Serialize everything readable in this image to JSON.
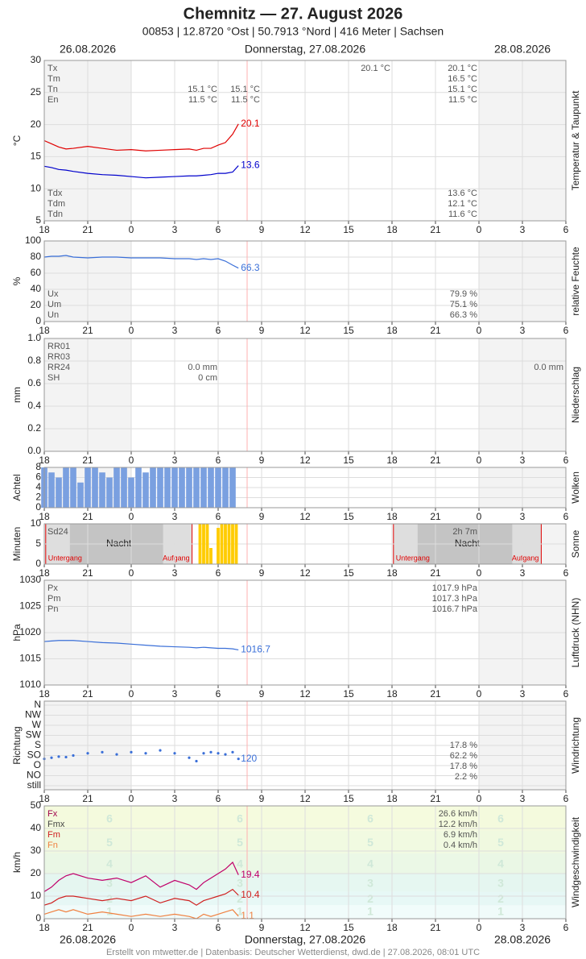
{
  "header": {
    "title": "Chemnitz  —  27. August 2026",
    "subtitle": "00853  |  12.8720 °Ost  |  50.7913 °Nord  |  416 Meter  |  Sachsen"
  },
  "dates": [
    "26.08.2026",
    "Donnerstag, 27.08.2026",
    "28.08.2026"
  ],
  "footer": "Erstellt von mtwetter.de | Datenbasis: Deutscher Wetterdienst, dwd.de | 27.08.2026, 08:01 UTC",
  "x_axis": {
    "xlim": [
      18,
      54
    ],
    "now": 32,
    "xticks": [
      18,
      21,
      {
        "value": 24,
        "label": "0"
      },
      {
        "value": 27,
        "label": "3"
      },
      {
        "value": 30,
        "label": "6"
      },
      {
        "value": 33,
        "label": "9"
      },
      {
        "value": 36,
        "label": "12"
      },
      {
        "value": 39,
        "label": "15"
      },
      {
        "value": 42,
        "label": "18"
      },
      {
        "value": 45,
        "label": "21"
      },
      {
        "value": 48,
        "label": "0"
      },
      {
        "value": 51,
        "label": "3"
      },
      {
        "value": 54,
        "label": "6"
      }
    ]
  },
  "chart_data": [
    {
      "type": "line",
      "title": "Temperatur & Taupunkt",
      "y_label": "°C",
      "ylim": [
        5,
        30
      ],
      "yticks": [
        5,
        10,
        15,
        20,
        25,
        30
      ],
      "x": [
        18,
        18.5,
        19,
        19.5,
        20,
        21,
        22,
        23,
        24,
        25,
        26,
        27,
        28,
        28.5,
        29,
        29.5,
        30,
        30.5,
        31,
        31.4
      ],
      "series": [
        {
          "color": "#e00000",
          "values": [
            17.5,
            17.0,
            16.5,
            16.2,
            16.3,
            16.6,
            16.3,
            16.0,
            16.1,
            15.9,
            16.0,
            16.1,
            16.2,
            16.0,
            16.3,
            16.3,
            16.8,
            17.2,
            18.5,
            20.1
          ]
        },
        {
          "color": "#0000cc",
          "values": [
            13.5,
            13.3,
            13.0,
            12.9,
            12.7,
            12.4,
            12.2,
            12.1,
            11.9,
            11.7,
            11.8,
            11.9,
            12.0,
            12.0,
            12.1,
            12.2,
            12.4,
            12.4,
            12.6,
            13.6
          ]
        }
      ],
      "stats": {
        "top": [
          {
            "name": "Tx",
            "values": [
              null,
              null,
              "20.1 °C",
              "20.1 °C",
              null
            ]
          },
          {
            "name": "Tm",
            "values": [
              null,
              null,
              null,
              "16.5 °C",
              null
            ]
          },
          {
            "name": "Tn",
            "values": [
              "15.1 °C",
              "15.1 °C",
              null,
              "15.1 °C",
              null
            ]
          },
          {
            "name": "En",
            "values": [
              "11.5 °C",
              "11.5 °C",
              null,
              "11.5 °C",
              null
            ]
          }
        ],
        "bottom": [
          {
            "name": "Tdx",
            "values": [
              null,
              null,
              null,
              "13.6 °C",
              null
            ]
          },
          {
            "name": "Tdm",
            "values": [
              null,
              null,
              null,
              "12.1 °C",
              null
            ]
          },
          {
            "name": "Tdn",
            "values": [
              null,
              null,
              null,
              "11.6 °C",
              null
            ]
          }
        ]
      }
    },
    {
      "type": "line",
      "title": "relative Feuchte",
      "y_label": "%",
      "ylim": [
        0,
        100
      ],
      "yticks": [
        0,
        20,
        40,
        60,
        80,
        100
      ],
      "x": [
        18,
        18.5,
        19,
        19.5,
        20,
        21,
        22,
        23,
        24,
        25,
        26,
        27,
        28,
        28.5,
        29,
        29.5,
        30,
        30.5,
        31,
        31.4
      ],
      "series": [
        {
          "color": "#3a6fd8",
          "values": [
            80,
            81,
            81,
            82,
            80,
            79,
            80,
            80,
            79,
            79,
            79,
            78,
            78,
            77,
            78,
            77,
            78,
            75,
            70,
            66.3
          ]
        }
      ],
      "stats": {
        "bottom": [
          {
            "name": "Ux",
            "values": [
              null,
              null,
              null,
              "79.9 %",
              null
            ]
          },
          {
            "name": "Um",
            "values": [
              null,
              null,
              null,
              "75.1 %",
              null
            ]
          },
          {
            "name": "Un",
            "values": [
              null,
              null,
              null,
              "66.3 %",
              null
            ]
          }
        ]
      }
    },
    {
      "type": "line",
      "title": "Niederschlag",
      "y_label": "mm",
      "ylim": [
        0,
        1
      ],
      "yticks": [
        {
          "value": 0,
          "label": "0.0"
        },
        0.2,
        0.4,
        0.6,
        0.8,
        {
          "value": 1,
          "label": "1.0"
        }
      ],
      "x": [],
      "series": [],
      "stats": {
        "top": [
          {
            "name": "RR01",
            "values": [
              null,
              null,
              null,
              null,
              null
            ]
          },
          {
            "name": "RR03",
            "values": [
              null,
              null,
              null,
              null,
              null
            ]
          },
          {
            "name": "RR24",
            "values": [
              "0.0 mm",
              null,
              null,
              null,
              "0.0 mm"
            ]
          },
          {
            "name": "SH",
            "values": [
              "0 cm",
              null,
              null,
              null,
              null
            ]
          }
        ]
      }
    },
    {
      "type": "bar",
      "title": "Wolken",
      "y_label": "Achtel",
      "ylim": [
        0,
        8
      ],
      "yticks": [
        0,
        2,
        4,
        6,
        8
      ],
      "x": [
        18,
        18.5,
        19,
        19.5,
        20,
        20.5,
        21,
        21.5,
        22,
        22.5,
        23,
        23.5,
        24,
        24.5,
        25,
        25.5,
        26,
        26.5,
        27,
        27.5,
        28,
        28.5,
        29,
        29.5,
        30,
        30.5,
        31
      ],
      "series": [
        {
          "color": "#7aa0e0",
          "values": [
            8,
            7,
            6,
            8,
            8,
            5,
            8,
            8,
            7,
            6,
            8,
            8,
            6,
            8,
            7,
            8,
            8,
            8,
            8,
            8,
            8,
            8,
            8,
            8,
            8,
            8,
            8
          ]
        }
      ]
    },
    {
      "type": "bar",
      "title": "Sonne",
      "y_label": "Minuten",
      "ylim": [
        0,
        10
      ],
      "yticks": [
        0,
        5,
        10
      ],
      "nights": [
        [
          18.1,
          28.2
        ],
        [
          42.1,
          52.3
        ]
      ],
      "night_label": "Nacht",
      "sunset_label": "Untergang",
      "sunrise_label": "Aufgang",
      "x": [
        28.75,
        29,
        29.25,
        29.5,
        30,
        30.25,
        30.5,
        30.75,
        31,
        31.25
      ],
      "series": [
        {
          "color": "#ffcc00",
          "values": [
            10,
            10,
            10,
            4,
            9,
            10,
            10,
            10,
            10,
            10
          ]
        }
      ],
      "stats": {
        "top": [
          {
            "name": "Sd24",
            "values": [
              null,
              null,
              null,
              "2h 7m",
              null
            ]
          }
        ]
      }
    },
    {
      "type": "line",
      "title": "Luftdruck (NHN)",
      "y_label": "hPa",
      "ylim": [
        1010,
        1030
      ],
      "yticks": [
        1010,
        1015,
        1020,
        1025,
        1030
      ],
      "x": [
        18,
        18.5,
        19,
        19.5,
        20,
        21,
        22,
        23,
        24,
        25,
        26,
        27,
        28,
        28.5,
        29,
        29.5,
        30,
        30.5,
        31,
        31.4
      ],
      "series": [
        {
          "color": "#3a6fd8",
          "values": [
            1018.3,
            1018.4,
            1018.5,
            1018.5,
            1018.5,
            1018.3,
            1018.1,
            1018.0,
            1017.8,
            1017.6,
            1017.4,
            1017.3,
            1017.2,
            1017.1,
            1017.2,
            1017.1,
            1017.0,
            1017.0,
            1016.9,
            1016.7
          ]
        }
      ],
      "stats": {
        "top": [
          {
            "name": "Px",
            "values": [
              null,
              null,
              null,
              "1017.9 hPa",
              null
            ]
          },
          {
            "name": "Pm",
            "values": [
              null,
              null,
              null,
              "1017.3 hPa",
              null
            ]
          },
          {
            "name": "Pn",
            "values": [
              null,
              null,
              null,
              "1016.7 hPa",
              null
            ]
          }
        ]
      }
    },
    {
      "type": "scatter",
      "title": "Windrichtung",
      "y_label": "Richtung",
      "ylim": [
        -18,
        378
      ],
      "yticks": [
        {
          "value": 0,
          "label": "still"
        },
        {
          "value": 45,
          "label": "NO"
        },
        {
          "value": 90,
          "label": "O"
        },
        {
          "value": 135,
          "label": "SO"
        },
        {
          "value": 180,
          "label": "S"
        },
        {
          "value": 225,
          "label": "SW"
        },
        {
          "value": 270,
          "label": "W"
        },
        {
          "value": 315,
          "label": "NW"
        },
        {
          "value": 360,
          "label": "N"
        }
      ],
      "x": [
        18,
        18.5,
        19,
        19.5,
        20,
        21,
        22,
        23,
        24,
        25,
        26,
        27,
        28,
        28.5,
        29,
        29.5,
        30,
        30.5,
        31,
        31.4
      ],
      "series": [
        {
          "color": "#3a6fd8",
          "values": [
            120,
            125,
            130,
            128,
            135,
            145,
            150,
            140,
            150,
            145,
            158,
            145,
            125,
            110,
            145,
            150,
            145,
            140,
            150,
            120
          ]
        }
      ],
      "stats": {
        "middle": [
          {
            "values": [
              null,
              null,
              null,
              "17.8 %",
              null
            ]
          },
          {
            "values": [
              null,
              null,
              null,
              "62.2 %",
              null
            ]
          },
          {
            "values": [
              null,
              null,
              null,
              "17.8 %",
              null
            ]
          },
          {
            "values": [
              null,
              null,
              null,
              "2.2 %",
              null
            ]
          }
        ]
      }
    },
    {
      "type": "line",
      "title": "Windgeschwindigkeit",
      "y_label": "km/h",
      "ylim": [
        0,
        50
      ],
      "yticks": [
        0,
        10,
        20,
        30,
        40,
        50
      ],
      "beaufort": [
        {
          "force": 1,
          "from": 1,
          "to": 5,
          "color": "#eefbfa"
        },
        {
          "force": 2,
          "from": 6,
          "to": 11,
          "color": "#e3f7f4"
        },
        {
          "force": 3,
          "from": 12,
          "to": 19,
          "color": "#e2f6ee"
        },
        {
          "force": 4,
          "from": 20,
          "to": 28,
          "color": "#e8f7e2"
        },
        {
          "force": 5,
          "from": 29,
          "to": 38,
          "color": "#eff9dc"
        },
        {
          "force": 6,
          "from": 39,
          "to": 49,
          "color": "#f3fad8"
        }
      ],
      "x": [
        18,
        18.5,
        19,
        19.5,
        20,
        21,
        22,
        23,
        24,
        25,
        26,
        27,
        28,
        28.5,
        29,
        29.5,
        30,
        30.5,
        31,
        31.4
      ],
      "series": [
        {
          "color": "#c0006a",
          "values": [
            12,
            14,
            17,
            19,
            20,
            18,
            17,
            18,
            16,
            19,
            14,
            17,
            15,
            13,
            16,
            18,
            20,
            22,
            25,
            19.4
          ]
        },
        {
          "color": "#d02020",
          "values": [
            6,
            7,
            9,
            10,
            10,
            9,
            8,
            9,
            8,
            10,
            7,
            9,
            8,
            6,
            8,
            9,
            10,
            11,
            13,
            10.4
          ]
        },
        {
          "color": "#f08040",
          "values": [
            2,
            3,
            4,
            3,
            4,
            2,
            3,
            2,
            1,
            2,
            1,
            2,
            1,
            0,
            2,
            1,
            2,
            3,
            4,
            1.1
          ]
        }
      ],
      "stats": {
        "top": [
          {
            "name": "Fx",
            "color": "#a0004a",
            "values": [
              null,
              null,
              null,
              "26.6 km/h",
              null
            ]
          },
          {
            "name": "Fmx",
            "color": "#444444",
            "values": [
              null,
              null,
              null,
              "12.2 km/h",
              null
            ]
          },
          {
            "name": "Fm",
            "color": "#d02020",
            "values": [
              null,
              null,
              null,
              "6.9 km/h",
              null
            ]
          },
          {
            "name": "Fn",
            "color": "#f08040",
            "values": [
              null,
              null,
              null,
              "0.4 km/h",
              null
            ]
          }
        ]
      }
    }
  ]
}
